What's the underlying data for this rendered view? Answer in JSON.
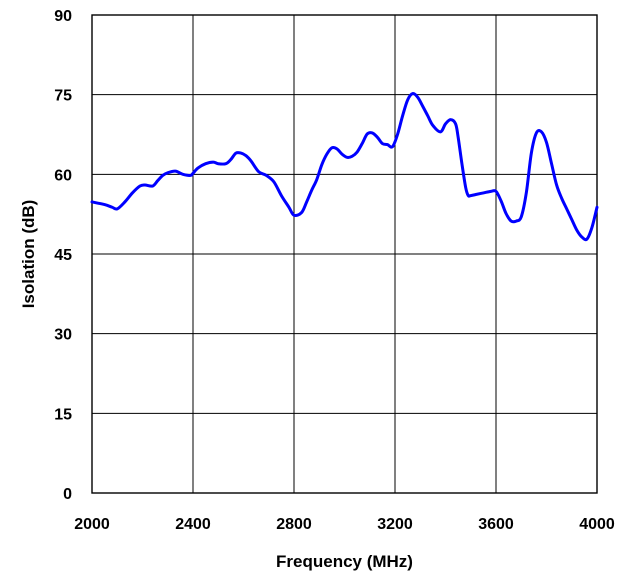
{
  "chart_data": {
    "type": "line",
    "title": "",
    "xlabel": "Frequency (MHz)",
    "ylabel": "Isolation (dB)",
    "xlim": [
      2000,
      4000
    ],
    "ylim": [
      0,
      90
    ],
    "x_ticks": [
      "2000",
      "2400",
      "2800",
      "3200",
      "3600",
      "4000"
    ],
    "y_ticks": [
      "0",
      "15",
      "30",
      "45",
      "60",
      "75",
      "90"
    ],
    "grid": true,
    "line_color": "#0000ff",
    "series": [
      {
        "x": [
          2000,
          2050,
          2080,
          2100,
          2130,
          2160,
          2190,
          2210,
          2240,
          2260,
          2280,
          2300,
          2330,
          2360,
          2390,
          2400,
          2420,
          2450,
          2480,
          2500,
          2530,
          2550,
          2570,
          2590,
          2610,
          2630,
          2660,
          2690,
          2720,
          2750,
          2780,
          2800,
          2830,
          2850,
          2870,
          2890,
          2910,
          2930,
          2950,
          2970,
          2990,
          3010,
          3030,
          3050,
          3070,
          3090,
          3110,
          3130,
          3150,
          3170,
          3190,
          3210,
          3230,
          3250,
          3270,
          3290,
          3310,
          3330,
          3350,
          3380,
          3400,
          3420,
          3440,
          3450,
          3465,
          3480,
          3490,
          3500,
          3520,
          3550,
          3580,
          3600,
          3620,
          3640,
          3660,
          3680,
          3700,
          3720,
          3740,
          3760,
          3780,
          3800,
          3820,
          3840,
          3860,
          3880,
          3900,
          3920,
          3940,
          3960,
          3980,
          4000
        ],
        "y": [
          54.8,
          54.3,
          53.8,
          53.5,
          54.8,
          56.5,
          57.8,
          58.0,
          57.8,
          58.8,
          59.8,
          60.3,
          60.6,
          60.0,
          59.8,
          60.2,
          61.2,
          62.0,
          62.3,
          62.0,
          62.0,
          62.8,
          64.0,
          64.0,
          63.5,
          62.5,
          60.5,
          59.8,
          58.6,
          56.0,
          53.8,
          52.3,
          52.8,
          54.8,
          57.0,
          59.0,
          61.8,
          63.8,
          65.0,
          64.8,
          63.8,
          63.2,
          63.4,
          64.2,
          65.8,
          67.6,
          67.8,
          67.0,
          65.8,
          65.6,
          65.2,
          67.5,
          71.0,
          74.0,
          75.2,
          74.5,
          72.8,
          71.0,
          69.2,
          68.0,
          69.5,
          70.3,
          69.5,
          67.0,
          62.0,
          57.5,
          56.0,
          56.0,
          56.2,
          56.5,
          56.8,
          56.8,
          55.0,
          52.6,
          51.2,
          51.2,
          52.0,
          56.5,
          64.0,
          67.8,
          68.0,
          66.0,
          62.0,
          58.0,
          55.5,
          53.5,
          51.5,
          49.5,
          48.2,
          47.8,
          50.0,
          53.8
        ]
      }
    ]
  }
}
